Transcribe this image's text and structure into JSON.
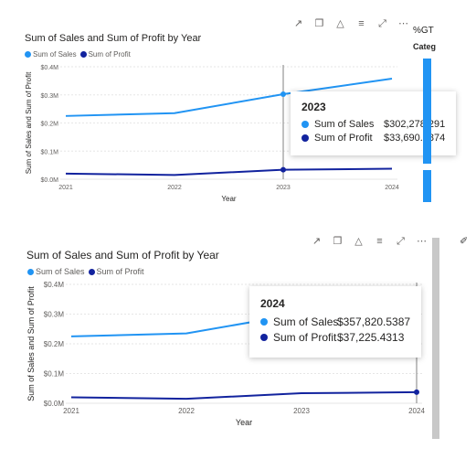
{
  "colors": {
    "sales": "#2194f3",
    "profit": "#12239e",
    "grid": "#e6e6e6",
    "cursor": "#808080"
  },
  "side_panel": {
    "title": "%GT",
    "subtitle": "Categ"
  },
  "toolbar_icons": [
    "pin-icon",
    "copy-icon",
    "bell-icon",
    "filter-icon",
    "expand-icon",
    "more-icon"
  ],
  "chart_data": [
    {
      "type": "line",
      "title": "Sum of Sales and Sum of Profit by Year",
      "xlabel": "Year",
      "ylabel": "Sum of Sales and Sum of Profit",
      "categories": [
        "2021",
        "2022",
        "2023",
        "2024"
      ],
      "y_ticks": [
        "$0.0M",
        "$0.1M",
        "$0.2M",
        "$0.3M",
        "$0.4M"
      ],
      "ylim": [
        0,
        400000
      ],
      "legend_position": "top-left",
      "series": [
        {
          "name": "Sum of Sales",
          "values": [
            225000,
            235000,
            302278.291,
            357820.5387
          ]
        },
        {
          "name": "Sum of Profit",
          "values": [
            20000,
            15000,
            33690.2874,
            37225.4313
          ]
        }
      ],
      "highlight_index": 2,
      "tooltip": {
        "year": "2023",
        "rows": [
          {
            "label": "Sum of Sales",
            "value": "$302,278.291"
          },
          {
            "label": "Sum of Profit",
            "value": "$33,690.2874"
          }
        ]
      }
    },
    {
      "type": "line",
      "title": "Sum of Sales and Sum of Profit by Year",
      "xlabel": "Year",
      "ylabel": "Sum of Sales and Sum of Profit",
      "categories": [
        "2021",
        "2022",
        "2023",
        "2024"
      ],
      "y_ticks": [
        "$0.0M",
        "$0.1M",
        "$0.2M",
        "$0.3M",
        "$0.4M"
      ],
      "ylim": [
        0,
        400000
      ],
      "legend_position": "top-left",
      "series": [
        {
          "name": "Sum of Sales",
          "values": [
            225000,
            235000,
            302278.291,
            357820.5387
          ]
        },
        {
          "name": "Sum of Profit",
          "values": [
            20000,
            15000,
            33690.2874,
            37225.4313
          ]
        }
      ],
      "highlight_index": 3,
      "tooltip": {
        "year": "2024",
        "rows": [
          {
            "label": "Sum of Sales",
            "value": "$357,820.5387"
          },
          {
            "label": "Sum of Profit",
            "value": "$37,225.4313"
          }
        ]
      }
    }
  ]
}
